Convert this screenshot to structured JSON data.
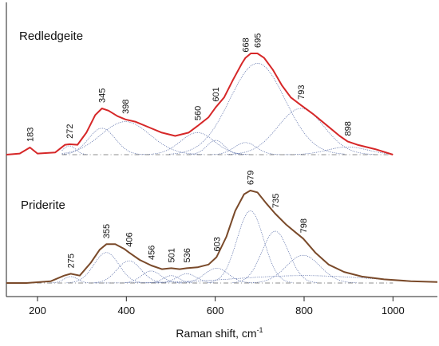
{
  "chart_data": {
    "type": "line",
    "xlabel": "Raman shift, cm",
    "xlabel_superscript": "-1",
    "xlim": [
      130,
      1100
    ],
    "x_ticks": [
      200,
      400,
      600,
      800,
      1000
    ],
    "y_axis_visible": false,
    "grid": false,
    "colors": {
      "redledgeite_envelope": "#d62728",
      "priderite_envelope": "#7a4a2a",
      "fit_components": "#5a6ea8",
      "baseline": "#6a6a6a"
    },
    "panels": [
      {
        "sample": "Redledgeite",
        "envelope": {
          "x": [
            130,
            160,
            183,
            200,
            240,
            262,
            272,
            290,
            310,
            330,
            345,
            360,
            380,
            398,
            420,
            450,
            480,
            510,
            540,
            560,
            585,
            601,
            620,
            640,
            660,
            668,
            680,
            695,
            710,
            730,
            750,
            770,
            793,
            820,
            850,
            880,
            898,
            920,
            960,
            1000
          ],
          "y": [
            0.0,
            0.01,
            0.065,
            0.01,
            0.02,
            0.09,
            0.095,
            0.09,
            0.2,
            0.36,
            0.42,
            0.4,
            0.35,
            0.32,
            0.3,
            0.25,
            0.2,
            0.17,
            0.2,
            0.26,
            0.34,
            0.43,
            0.52,
            0.68,
            0.83,
            0.88,
            0.92,
            0.92,
            0.88,
            0.77,
            0.63,
            0.52,
            0.45,
            0.37,
            0.27,
            0.17,
            0.12,
            0.09,
            0.05,
            0.0
          ]
        },
        "components": [
          {
            "center": 272,
            "height": 0.08,
            "width": 14
          },
          {
            "center": 345,
            "height": 0.24,
            "width": 30
          },
          {
            "center": 398,
            "height": 0.3,
            "width": 55
          },
          {
            "center": 560,
            "height": 0.2,
            "width": 38
          },
          {
            "center": 601,
            "height": 0.13,
            "width": 20
          },
          {
            "center": 668,
            "height": 0.11,
            "width": 25
          },
          {
            "center": 695,
            "height": 0.83,
            "width": 62
          },
          {
            "center": 793,
            "height": 0.42,
            "width": 52
          },
          {
            "center": 898,
            "height": 0.07,
            "width": 45
          }
        ],
        "peak_labels": [
          "183",
          "272",
          "345",
          "398",
          "560",
          "601",
          "668",
          "695",
          "793",
          "898"
        ],
        "peak_positions": [
          183,
          272,
          345,
          398,
          560,
          601,
          668,
          695,
          793,
          898
        ]
      },
      {
        "sample": "Priderite",
        "envelope": {
          "x": [
            130,
            175,
            230,
            260,
            275,
            295,
            320,
            340,
            355,
            375,
            395,
            406,
            430,
            456,
            480,
            501,
            520,
            536,
            560,
            585,
            603,
            625,
            645,
            665,
            679,
            695,
            715,
            735,
            760,
            780,
            798,
            825,
            855,
            890,
            930,
            980,
            1040,
            1100
          ],
          "y": [
            0.0,
            0.0,
            0.02,
            0.08,
            0.1,
            0.08,
            0.22,
            0.36,
            0.42,
            0.42,
            0.37,
            0.33,
            0.25,
            0.19,
            0.15,
            0.16,
            0.15,
            0.16,
            0.17,
            0.2,
            0.28,
            0.5,
            0.78,
            0.96,
            1.0,
            0.98,
            0.86,
            0.75,
            0.63,
            0.55,
            0.48,
            0.33,
            0.2,
            0.12,
            0.07,
            0.04,
            0.02,
            0.01
          ]
        },
        "components": [
          {
            "center": 275,
            "height": 0.07,
            "width": 15
          },
          {
            "center": 355,
            "height": 0.33,
            "width": 28
          },
          {
            "center": 406,
            "height": 0.24,
            "width": 27
          },
          {
            "center": 456,
            "height": 0.13,
            "width": 22
          },
          {
            "center": 501,
            "height": 0.08,
            "width": 18
          },
          {
            "center": 536,
            "height": 0.1,
            "width": 22
          },
          {
            "center": 603,
            "height": 0.16,
            "width": 27
          },
          {
            "center": 679,
            "height": 0.78,
            "width": 30
          },
          {
            "center": 735,
            "height": 0.56,
            "width": 30
          },
          {
            "center": 798,
            "height": 0.3,
            "width": 38
          },
          {
            "center": 800,
            "height": 0.08,
            "width": 150
          }
        ],
        "peak_labels": [
          "275",
          "355",
          "406",
          "456",
          "501",
          "536",
          "603",
          "679",
          "735",
          "798"
        ],
        "peak_positions": [
          275,
          355,
          406,
          456,
          501,
          536,
          603,
          679,
          735,
          798
        ]
      }
    ]
  }
}
